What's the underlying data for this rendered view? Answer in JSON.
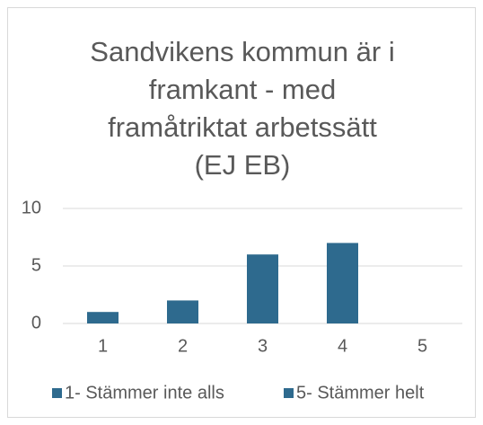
{
  "chart_data": {
    "type": "bar",
    "title": [
      "Sandvikens kommun är i",
      "framkant - med",
      "framåtriktat arbetssätt",
      "(EJ EB)"
    ],
    "categories": [
      "1",
      "2",
      "3",
      "4",
      "5"
    ],
    "values": [
      1,
      2,
      6,
      7,
      0
    ],
    "color": "#2e6a8e",
    "ylim": [
      0,
      10
    ],
    "yticks": [
      0,
      5,
      10
    ],
    "grid": true,
    "legend": [
      "1- Stämmer inte alls",
      "5- Stämmer helt"
    ],
    "legend_position": "bottom"
  }
}
